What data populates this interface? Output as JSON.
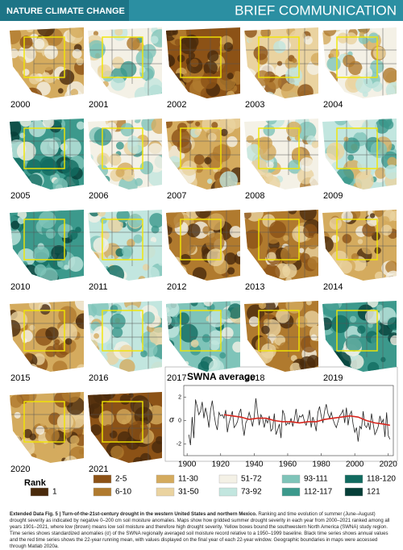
{
  "header": {
    "journal": "NATURE CLIMATE CHANGE",
    "section": "BRIEF COMMUNICATION"
  },
  "maps": [
    "2000",
    "2001",
    "2002",
    "2003",
    "2004",
    "2005",
    "2006",
    "2007",
    "2008",
    "2009",
    "2010",
    "2011",
    "2012",
    "2013",
    "2014",
    "2015",
    "2016",
    "2017",
    "2018",
    "2019",
    "2020",
    "2021"
  ],
  "legend": {
    "title": "Rank",
    "items": [
      {
        "label": "1",
        "color": "#4a2a0c"
      },
      {
        "label": "2-5",
        "color": "#8c5216"
      },
      {
        "label": "6-10",
        "color": "#b07a2e"
      },
      {
        "label": "11-30",
        "color": "#d4ab5e"
      },
      {
        "label": "31-50",
        "color": "#ead3a0"
      },
      {
        "label": "51-72",
        "color": "#f4f1e6"
      },
      {
        "label": "73-92",
        "color": "#c2e6df"
      },
      {
        "label": "93-111",
        "color": "#7fc4b9"
      },
      {
        "label": "112-117",
        "color": "#3c998c"
      },
      {
        "label": "118-120",
        "color": "#116b60"
      },
      {
        "label": "121",
        "color": "#063f38"
      }
    ]
  },
  "chart_data": {
    "type": "line",
    "title": "SWNA average",
    "y_label": "σ",
    "xlim": [
      1898,
      2023
    ],
    "xticks": [
      1900,
      1920,
      1940,
      1960,
      1980,
      2000,
      2020
    ],
    "ylim": [
      -3,
      3
    ],
    "yticks": [
      -2,
      0,
      2
    ],
    "series": [
      {
        "name": "annual",
        "color": "#222222",
        "x": [
          1901,
          1902,
          1903,
          1904,
          1905,
          1906,
          1907,
          1908,
          1909,
          1910,
          1911,
          1912,
          1913,
          1914,
          1915,
          1916,
          1917,
          1918,
          1919,
          1920,
          1921,
          1922,
          1923,
          1924,
          1925,
          1926,
          1927,
          1928,
          1929,
          1930,
          1931,
          1932,
          1933,
          1934,
          1935,
          1936,
          1937,
          1938,
          1939,
          1940,
          1941,
          1942,
          1943,
          1944,
          1945,
          1946,
          1947,
          1948,
          1949,
          1950,
          1951,
          1952,
          1953,
          1954,
          1955,
          1956,
          1957,
          1958,
          1959,
          1960,
          1961,
          1962,
          1963,
          1964,
          1965,
          1966,
          1967,
          1968,
          1969,
          1970,
          1971,
          1972,
          1973,
          1974,
          1975,
          1976,
          1977,
          1978,
          1979,
          1980,
          1981,
          1982,
          1983,
          1984,
          1985,
          1986,
          1987,
          1988,
          1989,
          1990,
          1991,
          1992,
          1993,
          1994,
          1995,
          1996,
          1997,
          1998,
          1999,
          2000,
          2001,
          2002,
          2003,
          2004,
          2005,
          2006,
          2007,
          2008,
          2009,
          2010,
          2011,
          2012,
          2013,
          2014,
          2015,
          2016,
          2017,
          2018,
          2019,
          2020,
          2021
        ],
        "values": [
          -1.2,
          -2.1,
          0.3,
          -1.5,
          1.8,
          1.2,
          0.5,
          0.8,
          1.6,
          0.2,
          1.1,
          0.4,
          -0.6,
          0.9,
          1.7,
          0.6,
          -0.3,
          -0.8,
          0.7,
          0.4,
          0.5,
          0.2,
          0.9,
          -1.0,
          -0.2,
          0.3,
          0.8,
          -0.6,
          -0.4,
          -0.1,
          0.6,
          1.0,
          -0.3,
          -1.3,
          -0.2,
          0.1,
          0.7,
          0.2,
          -0.5,
          0.3,
          1.9,
          0.7,
          -0.4,
          0.5,
          0.2,
          -0.6,
          0.1,
          -0.2,
          0.4,
          -0.9,
          -0.7,
          0.6,
          -1.2,
          -0.8,
          -0.3,
          -1.5,
          0.9,
          0.5,
          -0.4,
          -0.2,
          -0.3,
          0.2,
          -0.5,
          0.1,
          1.0,
          -0.2,
          0.4,
          0.3,
          0.5,
          -0.1,
          -0.4,
          0.1,
          0.9,
          -0.6,
          0.3,
          -0.2,
          -0.9,
          0.7,
          1.2,
          0.4,
          -0.2,
          0.8,
          1.4,
          0.6,
          0.2,
          0.7,
          0.1,
          -0.3,
          -0.6,
          -0.1,
          0.4,
          0.6,
          0.9,
          -0.2,
          1.1,
          -0.4,
          0.5,
          0.8,
          -0.3,
          -1.0,
          -0.6,
          -1.8,
          -0.5,
          -0.7,
          0.8,
          -0.4,
          -0.6,
          -0.2,
          -0.8,
          0.6,
          -0.3,
          -1.2,
          -0.9,
          -0.5,
          0.4,
          -0.2,
          0.1,
          -1.4,
          0.7,
          -1.3,
          -1.6
        ]
      },
      {
        "name": "22-year running mean",
        "color": "#d7261e",
        "x": [
          1922,
          1927,
          1932,
          1937,
          1942,
          1947,
          1952,
          1957,
          1962,
          1967,
          1972,
          1977,
          1982,
          1987,
          1992,
          1997,
          2002,
          2007,
          2012,
          2017,
          2021
        ],
        "values": [
          0.5,
          0.4,
          0.3,
          0.1,
          0.2,
          0.2,
          0.0,
          -0.1,
          -0.1,
          -0.2,
          -0.1,
          -0.1,
          0.1,
          0.2,
          0.3,
          0.4,
          0.3,
          0.0,
          -0.2,
          -0.3,
          -0.4
        ]
      }
    ]
  },
  "caption": {
    "label": "Extended Data Fig. 5 | Turn-of-the-21st-century drought in the western United States and northern Mexico.",
    "text": "Ranking and time evolution of summer (June–August) drought severity as indicated by negative 0–200 cm soil moisture anomalies. Maps show how gridded summer drought severity in each year from 2000–2021 ranked among all years 1901–2021, where low (brown) means low soil moisture and therefore high drought severity. Yellow boxes bound the southwestern North America (SWNA) study region. Time series shows standardized anomalies (σ) of the SWNA regionally averaged soil moisture record relative to a 1950–1999 baseline. Black time series shows annual values and the red time series shows the 22-year running mean, with values displayed on the final year of each 22-year window. Geographic boundaries in maps were accessed through Matlab 2020a."
  }
}
